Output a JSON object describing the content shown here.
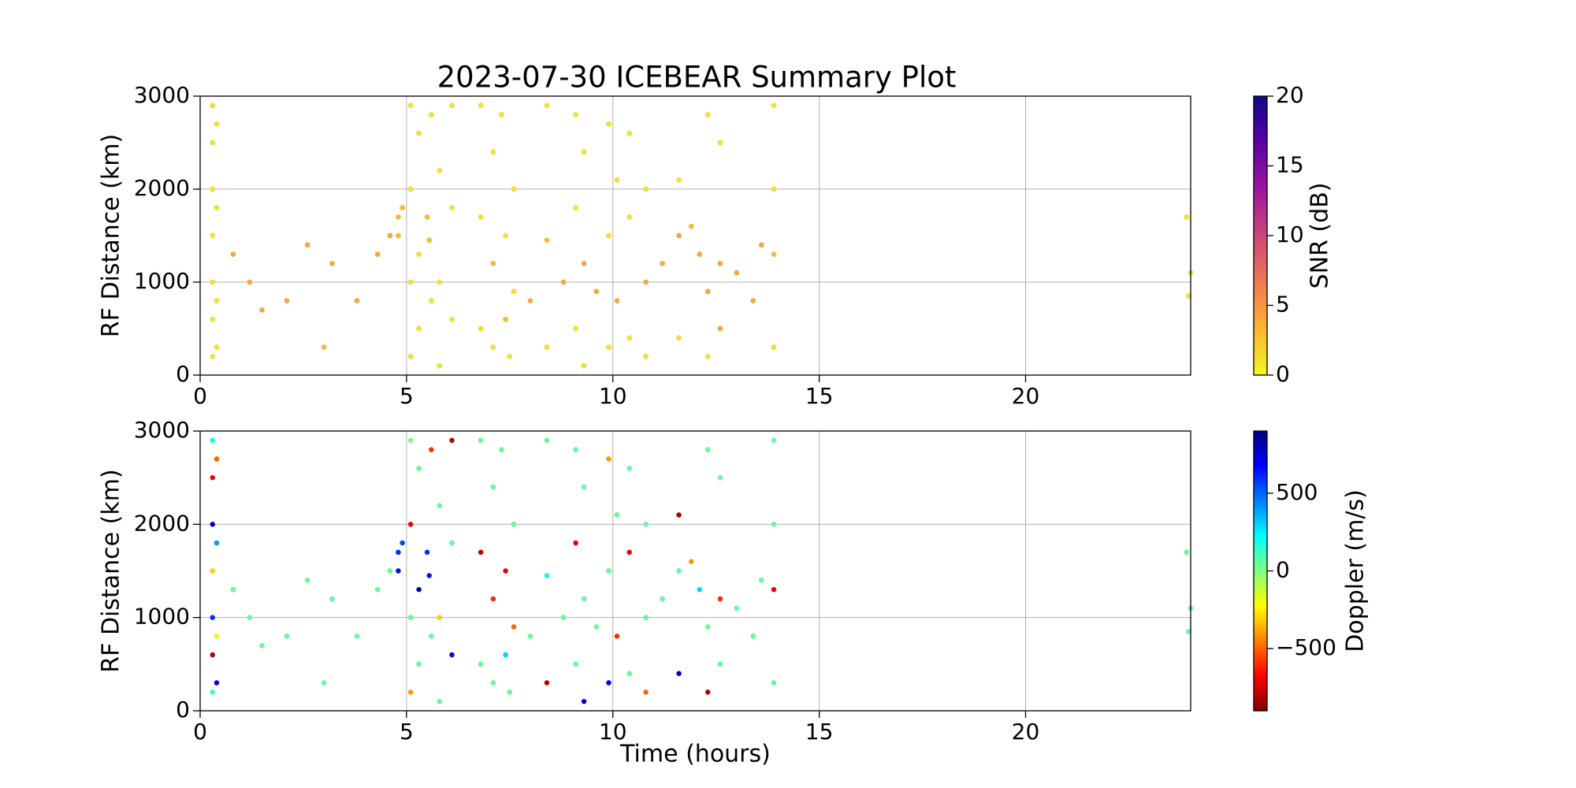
{
  "chart_data": [
    {
      "type": "scatter",
      "title": "2023-07-30 ICEBEAR Summary Plot",
      "ylabel": "RF Distance (km)",
      "x": [
        0.3,
        0.3,
        0.3,
        0.3,
        0.3,
        0.3,
        0.3,
        0.4,
        0.4,
        0.4,
        0.4,
        0.8,
        1.2,
        1.5,
        2.1,
        2.6,
        3.0,
        3.2,
        3.8,
        4.3,
        4.6,
        4.8,
        4.8,
        4.9,
        5.1,
        5.1,
        5.1,
        5.1,
        5.3,
        5.3,
        5.3,
        5.5,
        5.55,
        5.6,
        5.6,
        5.8,
        5.8,
        5.8,
        6.1,
        6.1,
        6.1,
        6.8,
        6.8,
        6.8,
        7.1,
        7.1,
        7.1,
        7.3,
        7.4,
        7.4,
        7.5,
        7.6,
        7.6,
        8.0,
        8.4,
        8.4,
        8.4,
        8.8,
        9.1,
        9.1,
        9.1,
        9.3,
        9.3,
        9.3,
        9.6,
        9.9,
        9.9,
        9.9,
        10.1,
        10.1,
        10.4,
        10.4,
        10.4,
        10.8,
        10.8,
        10.8,
        11.2,
        11.6,
        11.6,
        11.6,
        11.9,
        12.1,
        12.3,
        12.3,
        12.3,
        12.6,
        12.6,
        12.6,
        13.0,
        13.4,
        13.6,
        13.9,
        13.9,
        13.9,
        13.9,
        23.9,
        24.0,
        23.95
      ],
      "y": [
        2900,
        2500,
        2000,
        1500,
        1000,
        600,
        200,
        2700,
        1800,
        800,
        300,
        1300,
        1000,
        700,
        800,
        1400,
        300,
        1200,
        800,
        1300,
        1500,
        1700,
        1500,
        1800,
        2900,
        2000,
        1000,
        200,
        2600,
        1300,
        500,
        1700,
        1450,
        2800,
        800,
        2200,
        1000,
        100,
        2900,
        1800,
        600,
        2900,
        1700,
        500,
        2400,
        1200,
        300,
        2800,
        1500,
        600,
        200,
        2000,
        900,
        800,
        2900,
        1450,
        300,
        1000,
        2800,
        1800,
        500,
        2400,
        1200,
        100,
        900,
        2700,
        1500,
        300,
        2100,
        800,
        2600,
        1700,
        400,
        2000,
        1000,
        200,
        1200,
        2100,
        1500,
        400,
        1600,
        1300,
        2800,
        900,
        200,
        2500,
        1200,
        500,
        1100,
        800,
        1400,
        2900,
        2000,
        1300,
        300,
        1700,
        1100,
        850
      ],
      "c": [
        1,
        1,
        1,
        1,
        1,
        1,
        1,
        1,
        1,
        1,
        1,
        4,
        4,
        4,
        4,
        4,
        3,
        4,
        4,
        4,
        4,
        3,
        3,
        3,
        1,
        1,
        1,
        1,
        1,
        1,
        1,
        3,
        3,
        1,
        1,
        1,
        1,
        1,
        1,
        1,
        1,
        1,
        1,
        1,
        1,
        3,
        1,
        1,
        1,
        3,
        1,
        1,
        1,
        4,
        1,
        3,
        1,
        4,
        1,
        1,
        1,
        1,
        4,
        1,
        4,
        1,
        1,
        1,
        1,
        4,
        1,
        1,
        1,
        1,
        4,
        1,
        4,
        1,
        4,
        1,
        3,
        4,
        1,
        4,
        1,
        1,
        4,
        4,
        4,
        4,
        4,
        1,
        1,
        3,
        1,
        1,
        1,
        1
      ],
      "xlim": [
        0,
        24
      ],
      "ylim": [
        0,
        3000
      ],
      "xticks": [
        0,
        5,
        10,
        15,
        20
      ],
      "yticks": [
        0,
        1000,
        2000,
        3000
      ],
      "grid": true,
      "clim": [
        0,
        20
      ],
      "cticks": [
        0,
        5,
        10,
        15,
        20
      ],
      "clabel": "SNR (dB)",
      "colormap": "plasma_r"
    },
    {
      "type": "scatter",
      "xlabel": "Time (hours)",
      "ylabel": "RF Distance (km)",
      "x": [
        0.3,
        0.3,
        0.3,
        0.3,
        0.3,
        0.3,
        0.3,
        0.4,
        0.4,
        0.4,
        0.4,
        0.8,
        1.2,
        1.5,
        2.1,
        2.6,
        3.0,
        3.2,
        3.8,
        4.3,
        4.6,
        4.8,
        4.8,
        4.9,
        5.1,
        5.1,
        5.1,
        5.1,
        5.3,
        5.3,
        5.3,
        5.5,
        5.55,
        5.6,
        5.6,
        5.8,
        5.8,
        5.8,
        6.1,
        6.1,
        6.1,
        6.8,
        6.8,
        6.8,
        7.1,
        7.1,
        7.1,
        7.3,
        7.4,
        7.4,
        7.5,
        7.6,
        7.6,
        8.0,
        8.4,
        8.4,
        8.4,
        8.8,
        9.1,
        9.1,
        9.1,
        9.3,
        9.3,
        9.3,
        9.6,
        9.9,
        9.9,
        9.9,
        10.1,
        10.1,
        10.4,
        10.4,
        10.4,
        10.8,
        10.8,
        10.8,
        11.2,
        11.6,
        11.6,
        11.6,
        11.9,
        12.1,
        12.3,
        12.3,
        12.3,
        12.6,
        12.6,
        12.6,
        13.0,
        13.4,
        13.6,
        13.9,
        13.9,
        13.9,
        13.9,
        23.9,
        24.0,
        23.95
      ],
      "y": [
        2900,
        2500,
        2000,
        1500,
        1000,
        600,
        200,
        2700,
        1800,
        800,
        300,
        1300,
        1000,
        700,
        800,
        1400,
        300,
        1200,
        800,
        1300,
        1500,
        1700,
        1500,
        1800,
        2900,
        2000,
        1000,
        200,
        2600,
        1300,
        500,
        1700,
        1450,
        2800,
        800,
        2200,
        1000,
        100,
        2900,
        1800,
        600,
        2900,
        1700,
        500,
        2400,
        1200,
        300,
        2800,
        1500,
        600,
        200,
        2000,
        900,
        800,
        2900,
        1450,
        300,
        1000,
        2800,
        1800,
        500,
        2400,
        1200,
        100,
        900,
        2700,
        1500,
        300,
        2100,
        800,
        2600,
        1700,
        400,
        2000,
        1000,
        200,
        1200,
        2100,
        1500,
        400,
        1600,
        1300,
        2800,
        900,
        200,
        2500,
        1200,
        500,
        1100,
        800,
        1400,
        2900,
        2000,
        1300,
        300,
        1700,
        1100,
        850
      ],
      "c": [
        200,
        -700,
        800,
        -300,
        600,
        -800,
        100,
        -500,
        400,
        -200,
        700,
        50,
        50,
        50,
        50,
        50,
        50,
        50,
        50,
        50,
        50,
        600,
        650,
        550,
        0,
        -700,
        50,
        -400,
        50,
        800,
        50,
        600,
        650,
        -600,
        50,
        50,
        -300,
        50,
        -800,
        50,
        700,
        50,
        -800,
        50,
        50,
        -600,
        50,
        50,
        -700,
        300,
        50,
        50,
        -500,
        50,
        50,
        200,
        -800,
        50,
        50,
        -700,
        50,
        50,
        50,
        800,
        50,
        -400,
        50,
        700,
        50,
        -600,
        50,
        -700,
        50,
        50,
        50,
        -500,
        50,
        -800,
        50,
        800,
        -400,
        300,
        50,
        50,
        -800,
        50,
        -600,
        50,
        50,
        50,
        50,
        50,
        50,
        -700,
        50,
        50,
        50,
        50
      ],
      "xlim": [
        0,
        24
      ],
      "ylim": [
        0,
        3000
      ],
      "xticks": [
        0,
        5,
        10,
        15,
        20
      ],
      "yticks": [
        0,
        1000,
        2000,
        3000
      ],
      "grid": true,
      "clim": [
        -900,
        900
      ],
      "cticks": [
        {
          "value": -500,
          "label": "−500"
        },
        0,
        500
      ],
      "clabel": "Doppler (m/s)",
      "colormap": "jet_r"
    }
  ]
}
